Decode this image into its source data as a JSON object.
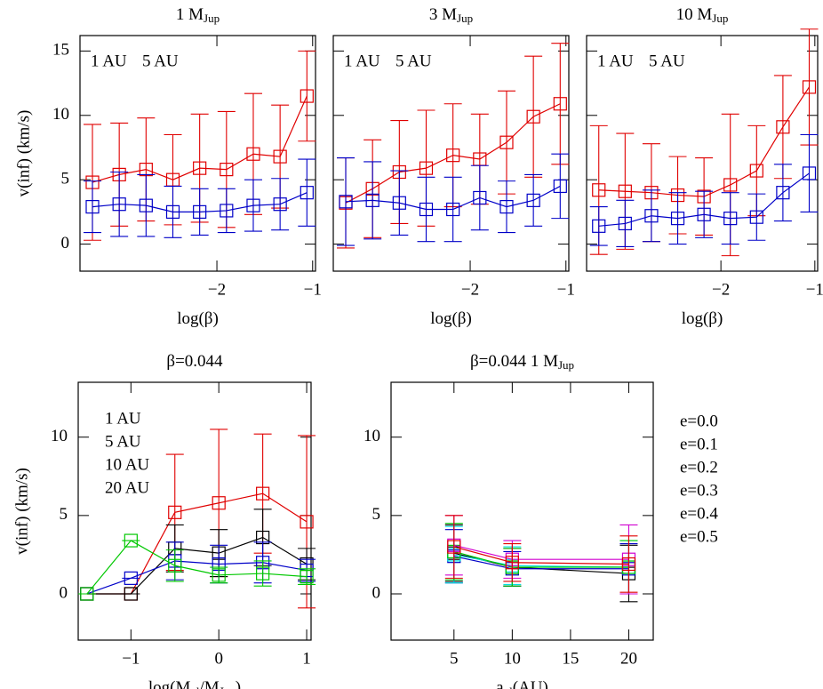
{
  "chart_data": [
    {
      "type": "line",
      "title": [
        {
          "text": "1 M"
        },
        {
          "text": "Jup",
          "sub": true
        }
      ],
      "xlabel": [
        {
          "text": "log(β)"
        }
      ],
      "ylabel": "v(inf) (km/s)",
      "x": [
        -3.3,
        -3.02,
        -2.74,
        -2.46,
        -2.18,
        -1.9,
        -1.62,
        -1.34,
        -1.06
      ],
      "xlim": [
        -3.43,
        -0.97
      ],
      "xticks": [
        {
          "value": -2,
          "label": "−2"
        },
        {
          "value": -1,
          "label": "−1"
        }
      ],
      "ylim": [
        -2.1,
        16.2
      ],
      "yticks": [
        0,
        5,
        10,
        15
      ],
      "ytick_labels": true,
      "legend": "upper-left-row",
      "series": [
        {
          "name": "1 AU",
          "color": "#e00000",
          "values": [
            4.8,
            5.4,
            5.8,
            5.0,
            5.9,
            5.8,
            7.0,
            6.8,
            11.5
          ],
          "errors": [
            4.5,
            4.0,
            4.0,
            3.5,
            4.2,
            4.5,
            4.7,
            4.0,
            3.5
          ]
        },
        {
          "name": "5 AU",
          "color": "#0000c8",
          "values": [
            2.9,
            3.1,
            3.0,
            2.5,
            2.5,
            2.6,
            3.0,
            3.1,
            4.0
          ],
          "errors": [
            2.0,
            2.5,
            2.4,
            2.0,
            1.8,
            1.7,
            2.0,
            2.0,
            2.6
          ]
        }
      ]
    },
    {
      "type": "line",
      "title": [
        {
          "text": "3 M"
        },
        {
          "text": "Jup",
          "sub": true
        }
      ],
      "xlabel": [
        {
          "text": "log(β)"
        }
      ],
      "x": [
        -3.3,
        -3.02,
        -2.74,
        -2.46,
        -2.18,
        -1.9,
        -1.62,
        -1.34,
        -1.06
      ],
      "xlim": [
        -3.43,
        -0.97
      ],
      "xticks": [
        {
          "value": -2,
          "label": "−2"
        },
        {
          "value": -1,
          "label": "−1"
        }
      ],
      "ylim": [
        -2.1,
        16.2
      ],
      "yticks": [
        0,
        5,
        10,
        15
      ],
      "ytick_labels": false,
      "legend": "upper-left-row",
      "series": [
        {
          "name": "1 AU",
          "color": "#e00000",
          "values": [
            3.2,
            4.3,
            5.6,
            5.9,
            6.9,
            6.6,
            7.9,
            9.9,
            10.9
          ],
          "errors": [
            3.5,
            3.8,
            4.0,
            4.5,
            4.0,
            3.5,
            4.0,
            4.7,
            4.7
          ]
        },
        {
          "name": "5 AU",
          "color": "#0000c8",
          "values": [
            3.3,
            3.4,
            3.2,
            2.7,
            2.7,
            3.6,
            2.9,
            3.4,
            4.5
          ],
          "errors": [
            3.4,
            3.0,
            2.5,
            2.5,
            2.5,
            2.5,
            2.0,
            2.0,
            2.5
          ]
        }
      ]
    },
    {
      "type": "line",
      "title": [
        {
          "text": "10 M"
        },
        {
          "text": "Jup",
          "sub": true
        }
      ],
      "xlabel": [
        {
          "text": "log(β)"
        }
      ],
      "x": [
        -3.3,
        -3.02,
        -2.74,
        -2.46,
        -2.18,
        -1.9,
        -1.62,
        -1.34,
        -1.06
      ],
      "xlim": [
        -3.43,
        -0.97
      ],
      "xticks": [
        {
          "value": -2,
          "label": "−2"
        },
        {
          "value": -1,
          "label": "−1"
        }
      ],
      "ylim": [
        -2.1,
        16.2
      ],
      "yticks": [
        0,
        5,
        10,
        15
      ],
      "ytick_labels": false,
      "legend": "upper-left-row",
      "series": [
        {
          "name": "1 AU",
          "color": "#e00000",
          "values": [
            4.2,
            4.1,
            4.0,
            3.8,
            3.7,
            4.6,
            5.7,
            9.1,
            12.2
          ],
          "errors": [
            5.0,
            4.5,
            3.8,
            3.0,
            3.0,
            5.5,
            3.5,
            4.0,
            4.5
          ]
        },
        {
          "name": "5 AU",
          "color": "#0000c8",
          "values": [
            1.4,
            1.6,
            2.2,
            2.0,
            2.3,
            2.0,
            2.1,
            4.0,
            5.5
          ],
          "errors": [
            1.5,
            1.8,
            2.0,
            2.0,
            1.8,
            2.0,
            1.8,
            2.2,
            3.0
          ]
        }
      ]
    },
    {
      "type": "line",
      "title": [
        {
          "text": "β=0.044"
        }
      ],
      "xlabel": [
        {
          "text": "log(M"
        },
        {
          "text": "pl",
          "sub": true
        },
        {
          "text": "/M"
        },
        {
          "text": "Jup",
          "sub": true
        },
        {
          "text": ")"
        }
      ],
      "ylabel": "v(inf) (km/s)",
      "x": [
        -1.5,
        -1,
        -0.5,
        0,
        0.5,
        1
      ],
      "xlim": [
        -1.6,
        1.05
      ],
      "xticks": [
        {
          "value": -1,
          "label": "−1"
        },
        0,
        1
      ],
      "ylim": [
        -2.95,
        13.5
      ],
      "yticks": [
        0,
        5,
        10
      ],
      "ytick_labels": true,
      "legend": "upper-left",
      "series": [
        {
          "name": "1 AU",
          "color": "#e00000",
          "values": [
            0,
            0,
            5.2,
            5.8,
            6.4,
            4.6
          ],
          "errors": [
            0,
            0,
            3.7,
            4.7,
            3.8,
            5.5
          ]
        },
        {
          "name": "5 AU",
          "color": "#000000",
          "values": [
            0,
            0,
            2.9,
            2.6,
            3.6,
            1.9
          ],
          "errors": [
            0,
            0,
            1.5,
            1.5,
            1.8,
            1.0
          ]
        },
        {
          "name": "10 AU",
          "color": "#0000c8",
          "values": [
            0,
            1.0,
            2.1,
            1.9,
            2.0,
            1.5
          ],
          "errors": [
            0,
            0,
            1.2,
            1.2,
            1.3,
            0.7
          ]
        },
        {
          "name": "20 AU",
          "color": "#00c800",
          "values": [
            0,
            3.4,
            1.8,
            1.2,
            1.3,
            1.1
          ],
          "errors": [
            0,
            0,
            1.0,
            0.5,
            0.8,
            0.5
          ]
        }
      ]
    },
    {
      "type": "line",
      "title": [
        {
          "text": "β=0.044   1 M"
        },
        {
          "text": "Jup",
          "sub": true
        }
      ],
      "xlabel": [
        {
          "text": "a"
        },
        {
          "text": "pl",
          "sub": true
        },
        {
          "text": "(AU)"
        }
      ],
      "x": [
        5,
        10,
        20
      ],
      "xlim": [
        -0.4,
        22.1
      ],
      "xticks": [
        5,
        10,
        15,
        20
      ],
      "ylim": [
        -2.95,
        13.5
      ],
      "yticks": [
        0,
        5,
        10
      ],
      "ytick_labels": true,
      "legend": "outside-right",
      "series": [
        {
          "name": "e=0.0",
          "color": "#000000",
          "values": [
            2.6,
            1.7,
            1.3
          ],
          "errors": [
            1.8,
            1.2,
            1.8
          ]
        },
        {
          "name": "e=0.1",
          "color": "#0000c8",
          "values": [
            2.4,
            1.6,
            1.6
          ],
          "errors": [
            1.7,
            1.1,
            1.6
          ]
        },
        {
          "name": "e=0.2",
          "color": "#00e0e0",
          "values": [
            2.5,
            1.8,
            1.7
          ],
          "errors": [
            1.8,
            1.2,
            1.7
          ]
        },
        {
          "name": "e=0.3",
          "color": "#00c800",
          "values": [
            2.7,
            1.7,
            1.7
          ],
          "errors": [
            1.8,
            1.2,
            1.7
          ]
        },
        {
          "name": "e=0.4",
          "color": "#d000d0",
          "values": [
            3.1,
            2.2,
            2.2
          ],
          "errors": [
            1.9,
            1.2,
            2.2
          ]
        },
        {
          "name": "e=0.5",
          "color": "#e00000",
          "values": [
            3.0,
            2.0,
            1.9
          ],
          "errors": [
            2.0,
            1.2,
            1.8
          ]
        }
      ]
    }
  ]
}
